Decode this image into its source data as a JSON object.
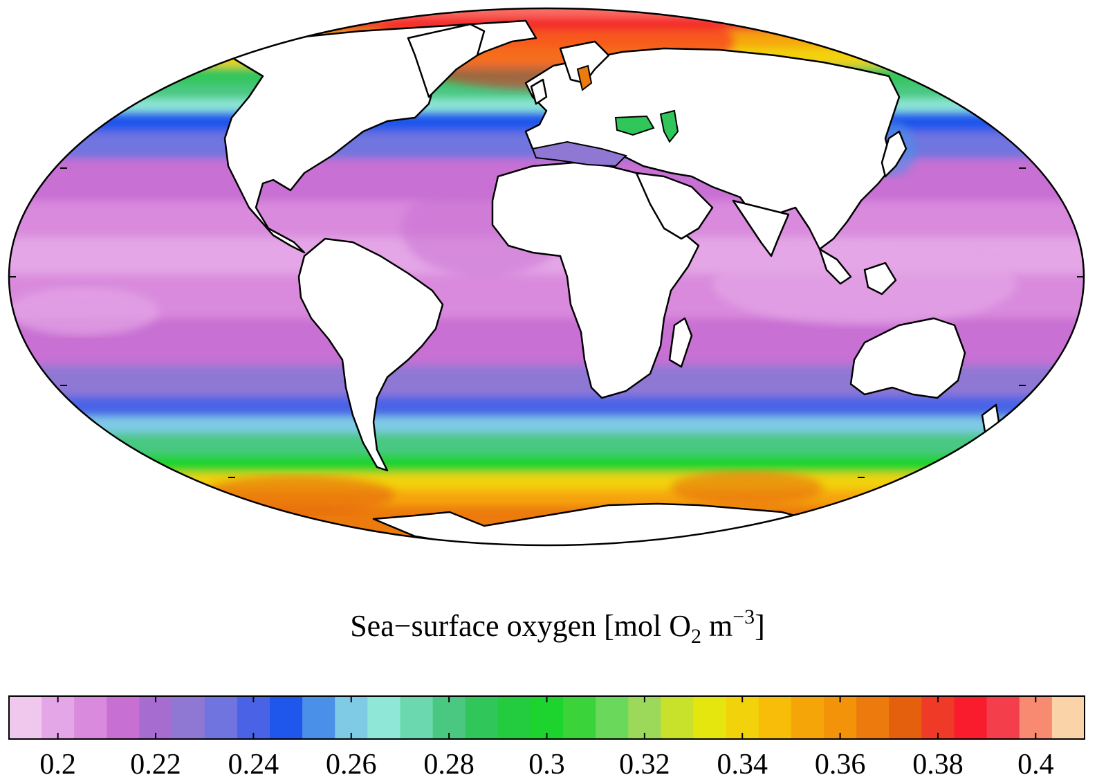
{
  "title": {
    "prefix": "Sea−surface oxygen [mol O",
    "subscript": "2",
    "middle": " m",
    "superscript": "−3",
    "suffix": "]"
  },
  "colorbar": {
    "min": 0.19,
    "max": 0.41,
    "colors": [
      "#f0c8ee",
      "#e4a6e6",
      "#d98add",
      "#c86fd3",
      "#a66ccf",
      "#8f78d4",
      "#6f74df",
      "#4a63e6",
      "#1f56ec",
      "#4a90e8",
      "#7fcbe6",
      "#8fe8d7",
      "#6bd8b0",
      "#4ac882",
      "#30c65a",
      "#22cc3e",
      "#1dd32d",
      "#3ad43a",
      "#6ad85a",
      "#9cd95a",
      "#c8e22c",
      "#e6e60f",
      "#f2d20a",
      "#f7bd08",
      "#f6a508",
      "#f2930a",
      "#ec7a0c",
      "#e4600c",
      "#ee3a26",
      "#f81c2c",
      "#f43e4c",
      "#f88a72",
      "#fbd3a8"
    ],
    "ticks": [
      0.2,
      0.22,
      0.24,
      0.26,
      0.28,
      0.3,
      0.32,
      0.34,
      0.36,
      0.38,
      0.4
    ],
    "tick_labels": [
      "0.2",
      "0.22",
      "0.24",
      "0.26",
      "0.28",
      "0.3",
      "0.32",
      "0.34",
      "0.36",
      "0.38",
      "0.4"
    ]
  },
  "map": {
    "projection": "mollweide",
    "bands": [
      {
        "lat": 90,
        "color": "#fbd3a8"
      },
      {
        "lat": 82,
        "color": "#ee3a26"
      },
      {
        "lat": 75,
        "color": "#f6a508"
      },
      {
        "lat": 68,
        "color": "#f2d20a"
      },
      {
        "lat": 61,
        "color": "#30c65a"
      },
      {
        "lat": 55,
        "color": "#4ac882"
      },
      {
        "lat": 50,
        "color": "#8fe8d7"
      },
      {
        "lat": 46,
        "color": "#1f56ec"
      },
      {
        "lat": 40,
        "color": "#6f74df"
      },
      {
        "lat": 32,
        "color": "#c86fd3"
      },
      {
        "lat": 20,
        "color": "#d98add"
      },
      {
        "lat": 10,
        "color": "#e4a6e6"
      },
      {
        "lat": 0,
        "color": "#d98add"
      },
      {
        "lat": -12,
        "color": "#c86fd3"
      },
      {
        "lat": -25,
        "color": "#8f78d4"
      },
      {
        "lat": -34,
        "color": "#4a63e6"
      },
      {
        "lat": -40,
        "color": "#7fcbe6"
      },
      {
        "lat": -45,
        "color": "#4ac882"
      },
      {
        "lat": -52,
        "color": "#1dd32d"
      },
      {
        "lat": -58,
        "color": "#f2d20a"
      },
      {
        "lat": -64,
        "color": "#f6a508"
      },
      {
        "lat": -70,
        "color": "#ec7a0c"
      },
      {
        "lat": -90,
        "color": "#f6a508"
      }
    ],
    "land_color": "#ffffff",
    "coast_color": "#000000"
  }
}
